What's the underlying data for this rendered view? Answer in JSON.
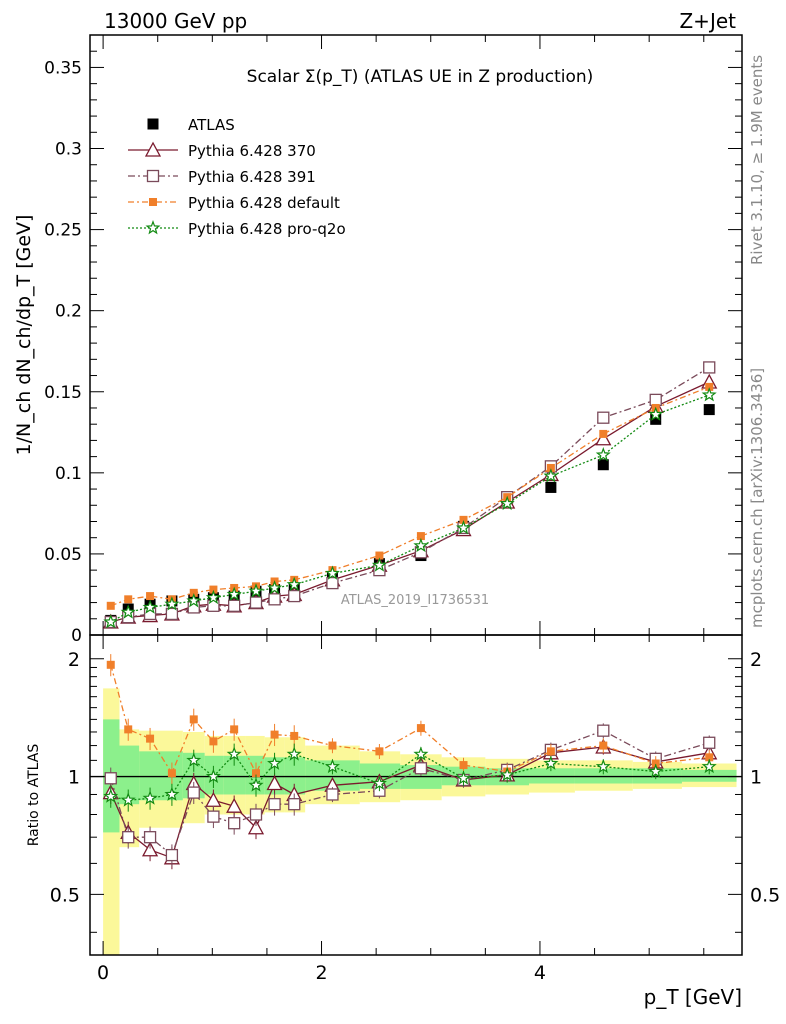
{
  "header": {
    "left": "13000 GeV pp",
    "right": "Z+Jet"
  },
  "side_text": {
    "rivet": "Rivet 3.1.10, ≥ 1.9M events",
    "mcplots": "mcplots.cern.ch [arXiv:1306.3436]"
  },
  "colors": {
    "atlas": "#000000",
    "p370": "#7a1a2e",
    "p391": "#7a4a5a",
    "pdefault": "#f07f2a",
    "pq2o": "#128a12",
    "band_yellow": "#fbf89a",
    "band_green": "#8cf08c"
  },
  "chart_data": [
    {
      "type": "line",
      "title": "Scalar Σ(p_T) (ATLAS UE in Z production)",
      "ylabel": "1/N_ch dN_ch/dp_T [GeV]",
      "watermark": "ATLAS_2019_I1736531",
      "xlim": [
        -0.12,
        5.85
      ],
      "ylim": [
        0,
        0.37
      ],
      "yticks": [
        "0",
        "0.05",
        "0.1",
        "0.15",
        "0.2",
        "0.25",
        "0.3",
        "0.35"
      ],
      "x": [
        0.07,
        0.23,
        0.43,
        0.63,
        0.83,
        1.01,
        1.2,
        1.4,
        1.57,
        1.75,
        2.1,
        2.53,
        2.91,
        3.3,
        3.7,
        4.1,
        4.58,
        5.06,
        5.55
      ],
      "series": [
        {
          "name": "ATLAS",
          "marker": "square",
          "values": [
            0.009,
            0.016,
            0.019,
            0.021,
            0.022,
            0.023,
            0.024,
            0.027,
            0.028,
            0.029,
            0.036,
            0.044,
            0.049,
            0.067,
            0.082,
            0.091,
            0.105,
            0.133,
            0.139
          ]
        },
        {
          "name": "Pythia 6.428 370",
          "marker": "triangle",
          "values": [
            0.008,
            0.011,
            0.012,
            0.013,
            0.018,
            0.019,
            0.018,
            0.02,
            0.024,
            0.025,
            0.034,
            0.043,
            0.052,
            0.065,
            0.082,
            0.099,
            0.121,
            0.141,
            0.156
          ]
        },
        {
          "name": "Pythia 6.428 391",
          "marker": "open-square",
          "values": [
            0.008,
            0.011,
            0.013,
            0.013,
            0.017,
            0.018,
            0.018,
            0.02,
            0.022,
            0.024,
            0.032,
            0.04,
            0.051,
            0.066,
            0.085,
            0.104,
            0.134,
            0.145,
            0.165
          ]
        },
        {
          "name": "Pythia 6.428 default",
          "marker": "filled-square-small",
          "values": [
            0.018,
            0.022,
            0.024,
            0.022,
            0.026,
            0.028,
            0.029,
            0.03,
            0.033,
            0.034,
            0.04,
            0.049,
            0.061,
            0.071,
            0.085,
            0.103,
            0.124,
            0.14,
            0.153
          ]
        },
        {
          "name": "Pythia 6.428 pro-q2o",
          "marker": "star",
          "values": [
            0.008,
            0.014,
            0.017,
            0.019,
            0.021,
            0.023,
            0.025,
            0.027,
            0.029,
            0.031,
            0.038,
            0.043,
            0.055,
            0.066,
            0.081,
            0.098,
            0.111,
            0.136,
            0.148
          ]
        }
      ]
    },
    {
      "type": "line",
      "ylabel": "Ratio to ATLAS",
      "xlabel": "p_T [GeV]",
      "xticks": [
        "0",
        "2",
        "4"
      ],
      "yticks": [
        "0.5",
        "1",
        "2"
      ],
      "ylim": [
        0.35,
        2.3
      ],
      "yscale": "log",
      "x": [
        0.07,
        0.23,
        0.43,
        0.63,
        0.83,
        1.01,
        1.2,
        1.4,
        1.57,
        1.75,
        2.1,
        2.53,
        2.91,
        3.3,
        3.7,
        4.1,
        4.58,
        5.06,
        5.55
      ],
      "bin_edges": [
        0.0,
        0.15,
        0.33,
        0.53,
        0.73,
        0.93,
        1.1,
        1.3,
        1.48,
        1.66,
        1.85,
        2.35,
        2.72,
        3.1,
        3.5,
        3.9,
        4.32,
        4.85,
        5.3,
        5.8
      ],
      "bands": {
        "stat": [
          [
            0.72,
            1.4
          ],
          [
            0.85,
            1.2
          ],
          [
            0.87,
            1.16
          ],
          [
            0.87,
            1.16
          ],
          [
            0.88,
            1.15
          ],
          [
            0.9,
            1.13
          ],
          [
            0.9,
            1.13
          ],
          [
            0.9,
            1.13
          ],
          [
            0.9,
            1.12
          ],
          [
            0.9,
            1.12
          ],
          [
            0.92,
            1.1
          ],
          [
            0.93,
            1.08
          ],
          [
            0.93,
            1.07
          ],
          [
            0.95,
            1.06
          ],
          [
            0.95,
            1.05
          ],
          [
            0.96,
            1.05
          ],
          [
            0.96,
            1.05
          ],
          [
            0.96,
            1.05
          ],
          [
            0.97,
            1.04
          ]
        ],
        "total": [
          [
            0.35,
            1.68
          ],
          [
            0.66,
            1.32
          ],
          [
            0.74,
            1.31
          ],
          [
            0.74,
            1.31
          ],
          [
            0.76,
            1.3
          ],
          [
            0.8,
            1.27
          ],
          [
            0.8,
            1.27
          ],
          [
            0.8,
            1.27
          ],
          [
            0.81,
            1.26
          ],
          [
            0.81,
            1.26
          ],
          [
            0.85,
            1.2
          ],
          [
            0.86,
            1.16
          ],
          [
            0.87,
            1.14
          ],
          [
            0.89,
            1.12
          ],
          [
            0.9,
            1.11
          ],
          [
            0.91,
            1.1
          ],
          [
            0.92,
            1.1
          ],
          [
            0.93,
            1.09
          ],
          [
            0.94,
            1.08
          ]
        ]
      },
      "series": [
        {
          "name": "Pythia 6.428 370",
          "values": [
            0.91,
            0.72,
            0.65,
            0.62,
            0.96,
            0.87,
            0.84,
            0.74,
            0.96,
            0.9,
            0.95,
            0.97,
            1.07,
            0.98,
            1.01,
            1.15,
            1.19,
            1.09,
            1.15
          ]
        },
        {
          "name": "Pythia 6.428 391",
          "values": [
            0.99,
            0.7,
            0.7,
            0.63,
            0.91,
            0.79,
            0.76,
            0.8,
            0.85,
            0.85,
            0.9,
            0.92,
            1.05,
            0.98,
            1.04,
            1.17,
            1.31,
            1.11,
            1.22
          ]
        },
        {
          "name": "Pythia 6.428 default",
          "values": [
            1.93,
            1.32,
            1.25,
            1.02,
            1.4,
            1.23,
            1.32,
            1.02,
            1.28,
            1.27,
            1.2,
            1.16,
            1.33,
            1.07,
            1.03,
            1.16,
            1.2,
            1.08,
            1.12
          ]
        },
        {
          "name": "Pythia 6.428 pro-q2o",
          "values": [
            0.89,
            0.87,
            0.88,
            0.9,
            1.1,
            1.0,
            1.14,
            0.95,
            1.08,
            1.14,
            1.06,
            0.96,
            1.14,
            0.99,
            1.01,
            1.08,
            1.06,
            1.03,
            1.06
          ]
        }
      ]
    }
  ]
}
